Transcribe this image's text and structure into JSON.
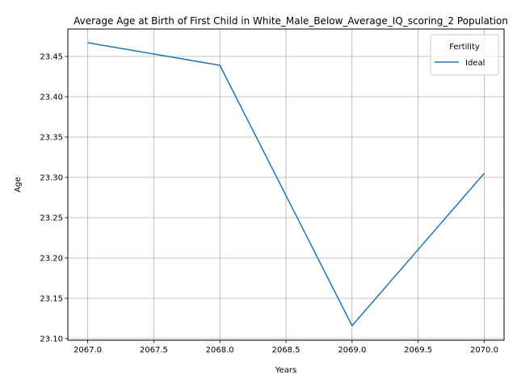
{
  "chart_data": {
    "type": "line",
    "title": "Average Age at Birth of First Child in White_Male_Below_Average_IQ_scoring_2 Population",
    "xlabel": "Years",
    "ylabel": "Age",
    "xlim": [
      2066.85,
      2070.15
    ],
    "ylim": [
      23.098,
      23.484
    ],
    "x_ticks": [
      2067.0,
      2067.5,
      2068.0,
      2068.5,
      2069.0,
      2069.5,
      2070.0
    ],
    "x_tick_labels": [
      "2067.0",
      "2067.5",
      "2068.0",
      "2068.5",
      "2069.0",
      "2069.5",
      "2070.0"
    ],
    "y_ticks": [
      23.1,
      23.15,
      23.2,
      23.25,
      23.3,
      23.35,
      23.4,
      23.45
    ],
    "y_tick_labels": [
      "23.10",
      "23.15",
      "23.20",
      "23.25",
      "23.30",
      "23.35",
      "23.40",
      "23.45"
    ],
    "grid": true,
    "legend": {
      "title": "Fertility",
      "placement": "top-right"
    },
    "series": [
      {
        "name": "Ideal",
        "color": "#1f77b4",
        "x": [
          2067,
          2068,
          2069,
          2070
        ],
        "y": [
          23.467,
          23.439,
          23.116,
          23.305
        ]
      }
    ]
  }
}
